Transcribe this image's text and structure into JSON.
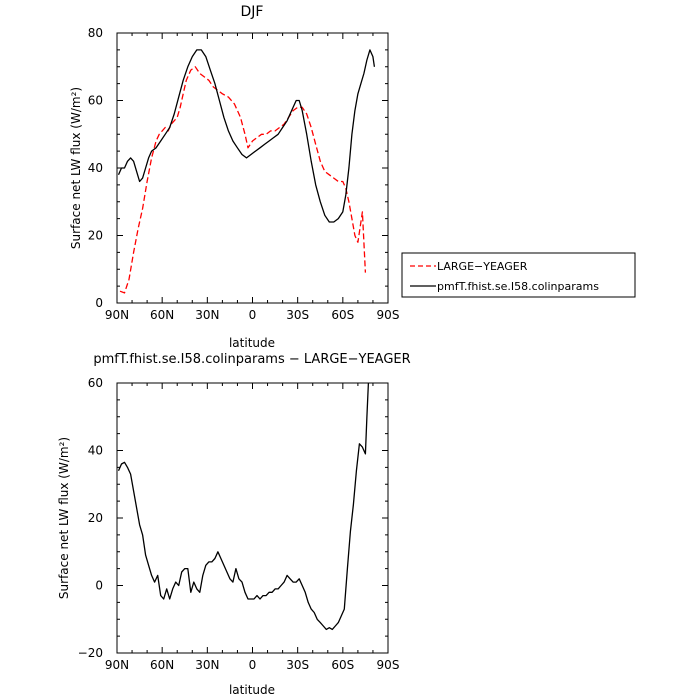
{
  "chart_data": [
    {
      "type": "line",
      "title": "DJF",
      "xlabel": "latitude",
      "ylabel": "Surface net LW flux (W/m²)",
      "xlim": [
        90,
        -90
      ],
      "ylim": [
        0,
        80
      ],
      "x_ticks": [
        {
          "value": 90,
          "label": "90N"
        },
        {
          "value": 60,
          "label": "60N"
        },
        {
          "value": 30,
          "label": "30N"
        },
        {
          "value": 0,
          "label": "0"
        },
        {
          "value": -30,
          "label": "30S"
        },
        {
          "value": -60,
          "label": "60S"
        },
        {
          "value": -90,
          "label": "90S"
        }
      ],
      "y_ticks": [
        0,
        20,
        40,
        60,
        80
      ],
      "legend_position": "right, outside plot, lower",
      "series": [
        {
          "name": "LARGE−YEAGER",
          "color": "#ff0000",
          "dashed": true,
          "points": [
            [
              88,
              3.5
            ],
            [
              85,
              3
            ],
            [
              82,
              7
            ],
            [
              79,
              15
            ],
            [
              76,
              22
            ],
            [
              73,
              28
            ],
            [
              70,
              36
            ],
            [
              67,
              43
            ],
            [
              64,
              48
            ],
            [
              62,
              50
            ],
            [
              60,
              51
            ],
            [
              58,
              52
            ],
            [
              56,
              51
            ],
            [
              54,
              53
            ],
            [
              52,
              54
            ],
            [
              50,
              55
            ],
            [
              48,
              58
            ],
            [
              46,
              62
            ],
            [
              44,
              66
            ],
            [
              41,
              69
            ],
            [
              38,
              70
            ],
            [
              35,
              68
            ],
            [
              32,
              67
            ],
            [
              29,
              66
            ],
            [
              26,
              64
            ],
            [
              23,
              63
            ],
            [
              20,
              62
            ],
            [
              16,
              61
            ],
            [
              12,
              59
            ],
            [
              8,
              55
            ],
            [
              5,
              50
            ],
            [
              3,
              46
            ],
            [
              0,
              48
            ],
            [
              -3,
              49
            ],
            [
              -6,
              50
            ],
            [
              -9,
              50
            ],
            [
              -12,
              51
            ],
            [
              -15,
              51
            ],
            [
              -18,
              52
            ],
            [
              -21,
              53
            ],
            [
              -24,
              55
            ],
            [
              -27,
              57
            ],
            [
              -30,
              58
            ],
            [
              -33,
              58
            ],
            [
              -36,
              56
            ],
            [
              -39,
              52
            ],
            [
              -42,
              47
            ],
            [
              -45,
              42
            ],
            [
              -48,
              39
            ],
            [
              -51,
              38
            ],
            [
              -54,
              37
            ],
            [
              -57,
              36
            ],
            [
              -60,
              36
            ],
            [
              -62,
              34
            ],
            [
              -64,
              30
            ],
            [
              -66,
              25
            ],
            [
              -68,
              20
            ],
            [
              -70,
              18
            ],
            [
              -72,
              24
            ],
            [
              -73,
              27
            ],
            [
              -74,
              18
            ],
            [
              -75,
              9
            ]
          ]
        },
        {
          "name": "pmfT.fhist.se.I58.colinparams",
          "color": "#000000",
          "dashed": false,
          "points": [
            [
              89,
              38
            ],
            [
              87,
              40
            ],
            [
              85,
              40
            ],
            [
              83,
              42
            ],
            [
              81,
              43
            ],
            [
              79,
              42
            ],
            [
              77,
              39
            ],
            [
              75,
              36
            ],
            [
              73,
              37
            ],
            [
              71,
              40
            ],
            [
              69,
              43
            ],
            [
              67,
              45
            ],
            [
              64,
              46
            ],
            [
              61,
              48
            ],
            [
              58,
              50
            ],
            [
              55,
              52
            ],
            [
              52,
              56
            ],
            [
              49,
              61
            ],
            [
              46,
              66
            ],
            [
              43,
              70
            ],
            [
              40,
              73
            ],
            [
              37,
              75
            ],
            [
              34,
              75
            ],
            [
              31,
              73
            ],
            [
              28,
              69
            ],
            [
              25,
              65
            ],
            [
              22,
              60
            ],
            [
              19,
              55
            ],
            [
              16,
              51
            ],
            [
              13,
              48
            ],
            [
              10,
              46
            ],
            [
              7,
              44
            ],
            [
              4,
              43
            ],
            [
              1,
              44
            ],
            [
              -2,
              45
            ],
            [
              -5,
              46
            ],
            [
              -8,
              47
            ],
            [
              -11,
              48
            ],
            [
              -14,
              49
            ],
            [
              -17,
              50
            ],
            [
              -20,
              52
            ],
            [
              -23,
              54
            ],
            [
              -26,
              57
            ],
            [
              -29,
              60
            ],
            [
              -31,
              60
            ],
            [
              -33,
              57
            ],
            [
              -36,
              50
            ],
            [
              -39,
              42
            ],
            [
              -42,
              35
            ],
            [
              -45,
              30
            ],
            [
              -48,
              26
            ],
            [
              -51,
              24
            ],
            [
              -54,
              24
            ],
            [
              -57,
              25
            ],
            [
              -60,
              27
            ],
            [
              -62,
              32
            ],
            [
              -64,
              40
            ],
            [
              -66,
              50
            ],
            [
              -68,
              57
            ],
            [
              -70,
              62
            ],
            [
              -72,
              65
            ],
            [
              -74,
              68
            ],
            [
              -76,
              72
            ],
            [
              -78,
              75
            ],
            [
              -80,
              73
            ],
            [
              -81,
              70
            ]
          ]
        }
      ]
    },
    {
      "type": "line",
      "title": "pmfT.fhist.se.I58.colinparams − LARGE−YEAGER",
      "xlabel": "latitude",
      "ylabel": "Surface net LW flux (W/m²)",
      "xlim": [
        90,
        -90
      ],
      "ylim": [
        -20,
        60
      ],
      "x_ticks": [
        {
          "value": 90,
          "label": "90N"
        },
        {
          "value": 60,
          "label": "60N"
        },
        {
          "value": 30,
          "label": "30N"
        },
        {
          "value": 0,
          "label": "0"
        },
        {
          "value": -30,
          "label": "30S"
        },
        {
          "value": -60,
          "label": "60S"
        },
        {
          "value": -90,
          "label": "90S"
        }
      ],
      "y_ticks": [
        -20,
        0,
        20,
        40,
        60
      ],
      "series": [
        {
          "color": "#000000",
          "dashed": false,
          "points": [
            [
              89,
              34
            ],
            [
              87,
              36
            ],
            [
              85,
              36.5
            ],
            [
              83,
              35
            ],
            [
              81,
              33
            ],
            [
              79,
              28
            ],
            [
              77,
              23
            ],
            [
              75,
              18
            ],
            [
              73,
              15
            ],
            [
              71,
              9
            ],
            [
              69,
              6
            ],
            [
              67,
              3
            ],
            [
              65,
              1
            ],
            [
              63,
              3
            ],
            [
              61,
              -3
            ],
            [
              59,
              -4
            ],
            [
              57,
              -1
            ],
            [
              55,
              -4
            ],
            [
              53,
              -1
            ],
            [
              51,
              1
            ],
            [
              49,
              0
            ],
            [
              47,
              4
            ],
            [
              45,
              5
            ],
            [
              43,
              5
            ],
            [
              41,
              -2
            ],
            [
              39,
              1
            ],
            [
              37,
              -1
            ],
            [
              35,
              -2
            ],
            [
              33,
              3
            ],
            [
              31,
              6
            ],
            [
              29,
              7
            ],
            [
              27,
              7
            ],
            [
              25,
              8
            ],
            [
              23,
              10
            ],
            [
              21,
              8
            ],
            [
              19,
              6
            ],
            [
              17,
              4
            ],
            [
              15,
              2
            ],
            [
              13,
              1
            ],
            [
              11,
              5
            ],
            [
              9,
              2
            ],
            [
              7,
              1
            ],
            [
              5,
              -2
            ],
            [
              3,
              -4
            ],
            [
              1,
              -4
            ],
            [
              -1,
              -4
            ],
            [
              -3,
              -3
            ],
            [
              -5,
              -4
            ],
            [
              -7,
              -3
            ],
            [
              -9,
              -3
            ],
            [
              -11,
              -2
            ],
            [
              -13,
              -2
            ],
            [
              -15,
              -1
            ],
            [
              -17,
              -1
            ],
            [
              -19,
              0
            ],
            [
              -21,
              1
            ],
            [
              -23,
              3
            ],
            [
              -25,
              2
            ],
            [
              -27,
              1
            ],
            [
              -29,
              1
            ],
            [
              -31,
              2
            ],
            [
              -33,
              0
            ],
            [
              -35,
              -2
            ],
            [
              -37,
              -5
            ],
            [
              -39,
              -7
            ],
            [
              -41,
              -8
            ],
            [
              -43,
              -10
            ],
            [
              -45,
              -11
            ],
            [
              -47,
              -12
            ],
            [
              -49,
              -13
            ],
            [
              -51,
              -12.5
            ],
            [
              -53,
              -13
            ],
            [
              -55,
              -12
            ],
            [
              -57,
              -11
            ],
            [
              -59,
              -9
            ],
            [
              -61,
              -7
            ],
            [
              -63,
              5
            ],
            [
              -65,
              16
            ],
            [
              -67,
              24
            ],
            [
              -69,
              34
            ],
            [
              -71,
              42
            ],
            [
              -73,
              41
            ],
            [
              -75,
              39
            ],
            [
              -76,
              50
            ],
            [
              -77,
              60
            ]
          ]
        }
      ]
    }
  ]
}
